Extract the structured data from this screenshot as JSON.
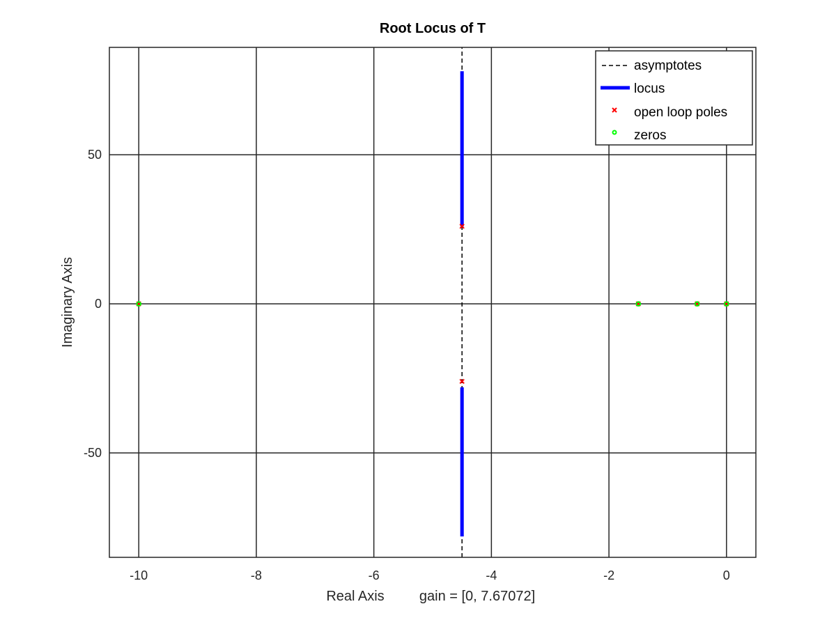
{
  "chart_data": {
    "type": "scatter",
    "title": "Root Locus of T",
    "xlabel": "Real Axis",
    "xlabel_extra": "gain = [0, 7.67072]",
    "ylabel": "Imaginary Axis",
    "xlim": [
      -10.5,
      0.5
    ],
    "ylim": [
      -85,
      86
    ],
    "xticks": [
      -10,
      -8,
      -6,
      -4,
      -2,
      0
    ],
    "xtick_labels": [
      "-10",
      "-8",
      "-6",
      "-4",
      "-2",
      "0"
    ],
    "yticks": [
      -50,
      0,
      50
    ],
    "ytick_labels": [
      "-50",
      "0",
      "50"
    ],
    "grid": true,
    "legend_position": "top-right",
    "legend": [
      "asymptotes",
      "locus",
      "open loop poles",
      "zeros"
    ],
    "colors": {
      "asymptotes": "#000000",
      "locus": "#0000ff",
      "poles": "#ff0000",
      "zeros": "#00ff00",
      "grid": "#262626"
    },
    "series": [
      {
        "name": "asymptotes",
        "kind": "dashed-line",
        "x": [
          -4.5,
          -4.5
        ],
        "y": [
          -85,
          86
        ]
      },
      {
        "name": "locus",
        "kind": "line",
        "x": [
          -4.5,
          -4.5
        ],
        "y": [
          26,
          78
        ]
      },
      {
        "name": "locus",
        "kind": "line",
        "x": [
          -4.5,
          -4.5
        ],
        "y": [
          -28,
          -78
        ]
      },
      {
        "name": "open loop poles",
        "kind": "marker",
        "points": [
          {
            "x": -4.5,
            "y": 26
          },
          {
            "x": -4.5,
            "y": -26
          },
          {
            "x": -1.5,
            "y": 0
          },
          {
            "x": -0.5,
            "y": 0
          },
          {
            "x": 0,
            "y": 0
          },
          {
            "x": -10,
            "y": 0
          }
        ]
      },
      {
        "name": "zeros",
        "kind": "marker",
        "points": [
          {
            "x": -10,
            "y": 0
          },
          {
            "x": -1.5,
            "y": 0
          },
          {
            "x": -0.5,
            "y": 0
          },
          {
            "x": 0,
            "y": 0
          }
        ]
      }
    ]
  }
}
